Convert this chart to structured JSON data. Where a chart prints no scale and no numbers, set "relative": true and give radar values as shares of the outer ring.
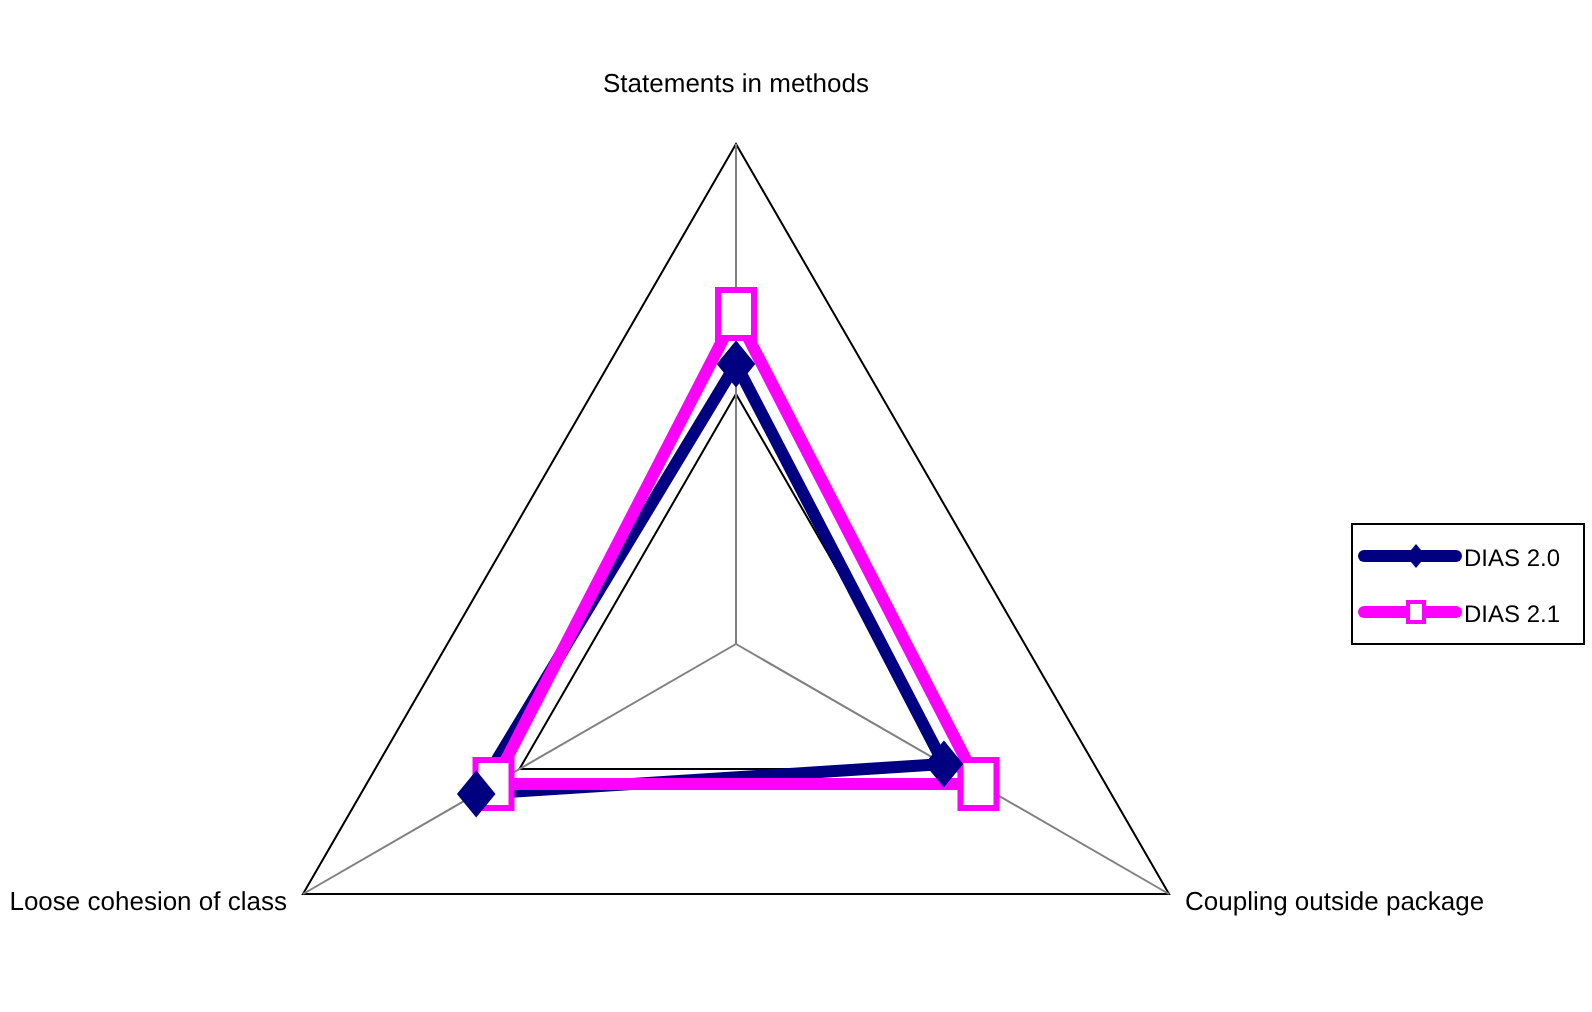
{
  "chart_data": {
    "type": "radar",
    "relative": true,
    "categories": [
      "Statements in methods",
      "Coupling outside package",
      "Loose cohesion of class"
    ],
    "legend": "right",
    "line_style": "solid",
    "series": [
      {
        "name": "DIAS 2.0",
        "color": "#000080",
        "marker": "diamond",
        "values": [
          0.56,
          0.48,
          0.6
        ]
      },
      {
        "name": "DIAS 2.1",
        "color": "#ff00ff",
        "marker": "square",
        "values": [
          0.66,
          0.56,
          0.56
        ]
      }
    ]
  }
}
